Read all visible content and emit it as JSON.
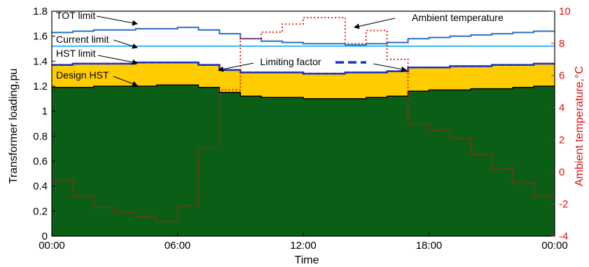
{
  "chart_data": {
    "type": "area",
    "xlabel": "Time",
    "ylabel": "Transformer loading,pu",
    "y2label": "Ambient temperature,°C",
    "xticks": [
      "00:00",
      "06:00",
      "12:00",
      "18:00",
      "00:00"
    ],
    "xlim": [
      0,
      24
    ],
    "ylim": [
      0,
      1.8
    ],
    "y2lim": [
      -4,
      10
    ],
    "yticks": [
      "0",
      "0.2",
      "0.4",
      "0.6",
      "0.8",
      "1",
      "1.2",
      "1.4",
      "1.6",
      "1.8"
    ],
    "y2ticks": [
      "-4",
      "-2",
      "0",
      "2",
      "4",
      "6",
      "8",
      "10"
    ],
    "grid": false,
    "series": [
      {
        "name": "TOT limit",
        "color": "#2b6fc4",
        "style": "step-solid",
        "x": [
          0,
          1,
          2,
          3,
          4,
          5,
          6,
          7,
          8,
          9,
          10,
          11,
          12,
          13,
          14,
          15,
          16,
          17,
          18,
          19,
          20,
          21,
          22,
          23,
          24
        ],
        "values": [
          1.63,
          1.64,
          1.65,
          1.65,
          1.66,
          1.66,
          1.67,
          1.65,
          1.62,
          1.58,
          1.56,
          1.55,
          1.54,
          1.54,
          1.53,
          1.54,
          1.55,
          1.58,
          1.59,
          1.6,
          1.61,
          1.62,
          1.63,
          1.64,
          1.64
        ]
      },
      {
        "name": "Current limit",
        "color": "#33bbee",
        "style": "solid",
        "x": [
          0,
          24
        ],
        "values": [
          1.52,
          1.52
        ]
      },
      {
        "name": "HST limit",
        "color": "#1a3aa8",
        "style": "step-solid",
        "x": [
          0,
          1,
          2,
          3,
          4,
          5,
          6,
          7,
          8,
          9,
          10,
          11,
          12,
          13,
          14,
          15,
          16,
          17,
          18,
          19,
          20,
          21,
          22,
          23,
          24
        ],
        "values": [
          1.37,
          1.38,
          1.38,
          1.38,
          1.39,
          1.39,
          1.39,
          1.37,
          1.33,
          1.31,
          1.31,
          1.31,
          1.3,
          1.3,
          1.31,
          1.31,
          1.32,
          1.35,
          1.35,
          1.36,
          1.36,
          1.37,
          1.37,
          1.38,
          1.38
        ]
      },
      {
        "name": "Limiting factor",
        "color": "#1a3aa8",
        "style": "dashed"
      },
      {
        "name": "Design HST",
        "color": "#000000",
        "fill": "#0b5e16",
        "style": "step-solid",
        "x": [
          0,
          1,
          2,
          3,
          4,
          5,
          6,
          7,
          8,
          9,
          10,
          11,
          12,
          13,
          14,
          15,
          16,
          17,
          18,
          19,
          20,
          21,
          22,
          23,
          24
        ],
        "values": [
          1.19,
          1.19,
          1.2,
          1.2,
          1.2,
          1.21,
          1.21,
          1.19,
          1.15,
          1.12,
          1.11,
          1.11,
          1.1,
          1.1,
          1.1,
          1.11,
          1.12,
          1.16,
          1.17,
          1.17,
          1.18,
          1.18,
          1.19,
          1.2,
          1.2
        ]
      },
      {
        "name": "Ambient temperature",
        "color": "#e01010",
        "style": "step-dotted",
        "axis": "right",
        "x": [
          0,
          1,
          2,
          3,
          4,
          5,
          6,
          7,
          8,
          9,
          10,
          11,
          12,
          13,
          14,
          15,
          16,
          17,
          18,
          19,
          20,
          21,
          22,
          23,
          24
        ],
        "values": [
          -0.5,
          -1.5,
          -2.2,
          -2.5,
          -2.8,
          -3.1,
          -2.1,
          1.5,
          5.1,
          8.3,
          8.7,
          9.2,
          9.6,
          9.6,
          8.0,
          8.8,
          7.0,
          3.0,
          2.6,
          2.1,
          1.1,
          0.2,
          -0.7,
          -1.5,
          -1.5
        ]
      }
    ],
    "fill_band": {
      "color": "#ffcc00",
      "between": [
        "Design HST",
        "HST limit"
      ]
    },
    "annotations": [
      {
        "text": "TOT limit"
      },
      {
        "text": "Current limit"
      },
      {
        "text": "HST limit"
      },
      {
        "text": "Design HST"
      },
      {
        "text": "Limiting factor"
      },
      {
        "text": "Ambient temperature"
      }
    ]
  }
}
